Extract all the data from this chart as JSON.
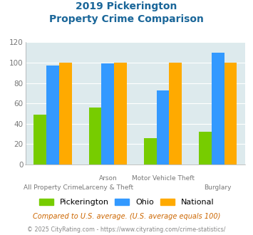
{
  "title_line1": "2019 Pickerington",
  "title_line2": "Property Crime Comparison",
  "cat_labels_top": [
    "",
    "Arson",
    "Motor Vehicle Theft",
    ""
  ],
  "cat_labels_bottom": [
    "All Property Crime",
    "Larceny & Theft",
    "",
    "Burglary"
  ],
  "pickerington": [
    49,
    56,
    26,
    32
  ],
  "ohio": [
    97,
    99,
    73,
    110
  ],
  "national": [
    100,
    100,
    100,
    100
  ],
  "color_pickerington": "#77cc00",
  "color_ohio": "#3399ff",
  "color_national": "#ffaa00",
  "ylim": [
    0,
    120
  ],
  "yticks": [
    0,
    20,
    40,
    60,
    80,
    100,
    120
  ],
  "legend_labels": [
    "Pickerington",
    "Ohio",
    "National"
  ],
  "footnote1": "Compared to U.S. average. (U.S. average equals 100)",
  "footnote2": "© 2025 CityRating.com - https://www.cityrating.com/crime-statistics/",
  "plot_bg_color": "#ddeaed",
  "fig_bg_color": "#ffffff",
  "title_color": "#1a6699",
  "footnote1_color": "#cc6600",
  "footnote2_color": "#888888",
  "tick_color": "#777777",
  "grid_color": "#ffffff"
}
